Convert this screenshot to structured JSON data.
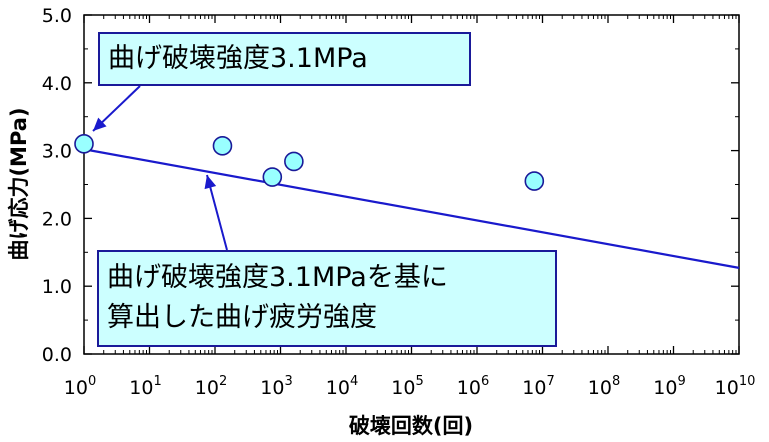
{
  "chart_data": {
    "type": "scatter",
    "xlabel": "破壊回数(回)",
    "ylabel": "曲げ応力(MPa)",
    "x_scale": "log",
    "xlim": [
      1,
      10000000000
    ],
    "ylim": [
      0.0,
      5.0
    ],
    "x_ticks": [
      {
        "base": "10",
        "exp": "0"
      },
      {
        "base": "10",
        "exp": "1"
      },
      {
        "base": "10",
        "exp": "2"
      },
      {
        "base": "10",
        "exp": "3"
      },
      {
        "base": "10",
        "exp": "4"
      },
      {
        "base": "10",
        "exp": "5"
      },
      {
        "base": "10",
        "exp": "6"
      },
      {
        "base": "10",
        "exp": "7"
      },
      {
        "base": "10",
        "exp": "8"
      },
      {
        "base": "10",
        "exp": "9"
      },
      {
        "base": "10",
        "exp": "10"
      }
    ],
    "y_ticks": [
      "0.0",
      "1.0",
      "2.0",
      "3.0",
      "4.0",
      "5.0"
    ],
    "grid": false,
    "points": [
      {
        "x": 1,
        "y": 3.1
      },
      {
        "x": 130,
        "y": 3.07
      },
      {
        "x": 750,
        "y": 2.61
      },
      {
        "x": 1600,
        "y": 2.84
      },
      {
        "x": 7500000,
        "y": 2.55
      }
    ],
    "fit_line": {
      "x": [
        1,
        10000000000
      ],
      "y": [
        3.02,
        1.27
      ]
    },
    "annotations": [
      {
        "lines": [
          "曲げ破壊強度3.1MPa"
        ]
      },
      {
        "lines": [
          "曲げ破壊強度3.1MPaを基に",
          "算出した曲げ疲労強度"
        ]
      }
    ],
    "colors": {
      "marker_fill": "#99ffff",
      "marker_stroke": "#1a1a99",
      "line": "#1a1acc",
      "callout_fill": "#ccffff",
      "callout_border": "#1a1a99"
    }
  }
}
